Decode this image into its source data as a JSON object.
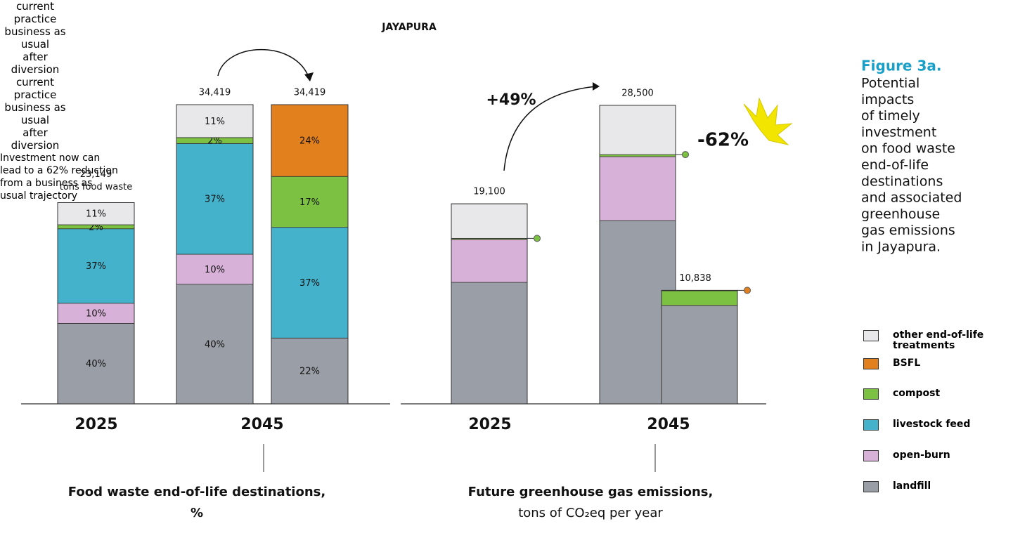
{
  "title": "JAYAPURA",
  "caption": {
    "heading": "Figure 3a.",
    "lines": [
      "Potential",
      "impacts",
      "of timely",
      "investment",
      "on food waste",
      "end-of-life",
      "destinations",
      "and associated",
      "greenhouse",
      "gas emissions",
      "in Jayapura."
    ]
  },
  "chart_data": [
    {
      "type": "stacked-bar",
      "stack_mode": "percent_of_total",
      "title": "Food waste end-of-life destinations,",
      "subtitle": "%",
      "x_groups": [
        "2025",
        "2045"
      ],
      "categories": [
        "current practice",
        "business as usual",
        "after diversion"
      ],
      "totals": [
        23149,
        34419,
        34419
      ],
      "total_labels": [
        "23,149",
        "34,419",
        "34,419"
      ],
      "total_unit": "tons food waste",
      "ylim": [
        0,
        34419
      ],
      "series": [
        {
          "name": "landfill",
          "color": "#9a9ea6",
          "values": [
            40,
            40,
            22
          ],
          "value_labels": [
            "40%",
            "40%",
            "22%"
          ]
        },
        {
          "name": "open-burn",
          "color": "#d8b1d8",
          "values": [
            10,
            10,
            null
          ],
          "value_labels": [
            "10%",
            "10%",
            null
          ]
        },
        {
          "name": "livestock feed",
          "color": "#44b2cb",
          "values": [
            37,
            37,
            37
          ],
          "value_labels": [
            "37%",
            "37%",
            "37%"
          ]
        },
        {
          "name": "compost",
          "color": "#7cc142",
          "values": [
            2,
            2,
            17
          ],
          "value_labels": [
            "2%",
            "2%",
            "17%"
          ]
        },
        {
          "name": "BSFL",
          "color": "#e2801e",
          "values": [
            null,
            null,
            24
          ],
          "value_labels": [
            null,
            null,
            "24%"
          ]
        },
        {
          "name": "other end-of-life treatments",
          "color": "#e8e8ea",
          "values": [
            11,
            11,
            null
          ],
          "value_labels": [
            "11%",
            "11%",
            null
          ]
        }
      ]
    },
    {
      "type": "stacked-bar",
      "stack_mode": "absolute",
      "title": "Future greenhouse gas emissions,",
      "subtitle": "tons of CO₂eq per year",
      "x_groups": [
        "2025",
        "2045"
      ],
      "categories": [
        "current practice",
        "business as usual",
        "after diversion"
      ],
      "totals": [
        19100,
        28500,
        10838
      ],
      "total_labels": [
        "19,100",
        "28,500",
        "10,838"
      ],
      "ylim": [
        0,
        28500
      ],
      "annotations": {
        "growth": "+49%",
        "reduction": "-62%",
        "note": "Investment now can lead to a 62% reduction from a business as usual trajectory"
      },
      "series": [
        {
          "name": "landfill",
          "color": "#9a9ea6",
          "values": [
            11600,
            17500,
            9400
          ]
        },
        {
          "name": "open-burn",
          "color": "#d8b1d8",
          "values": [
            4100,
            6100,
            null
          ]
        },
        {
          "name": "compost",
          "color": "#7cc142",
          "values": [
            100,
            200,
            1400
          ]
        },
        {
          "name": "BSFL",
          "color": "#e2801e",
          "values": [
            null,
            null,
            38
          ]
        },
        {
          "name": "other end-of-life treatments",
          "color": "#e8e8ea",
          "values": [
            3300,
            4700,
            null
          ]
        }
      ]
    }
  ]
}
